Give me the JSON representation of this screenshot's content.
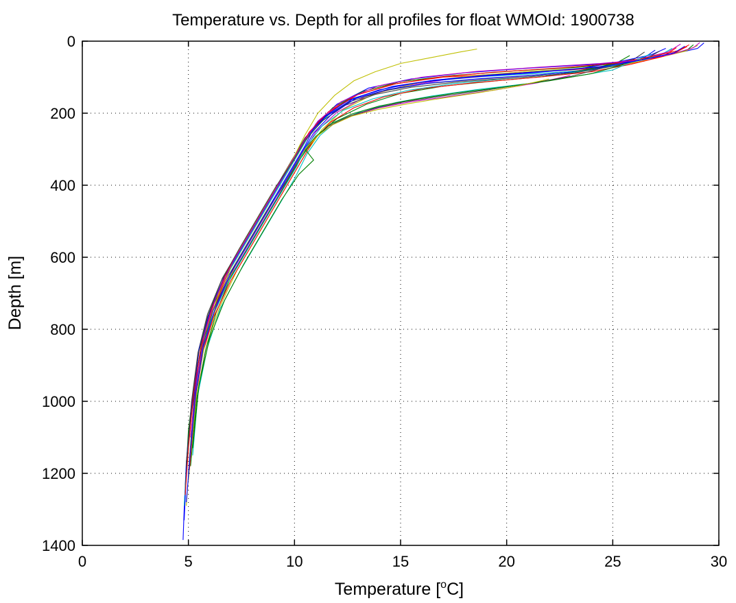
{
  "chart_data": {
    "type": "line",
    "title": "Temperature vs. Depth for all profiles for float WMOId: 1900738",
    "xlabel_prefix": "Temperature [",
    "xlabel_sup": "o",
    "xlabel_suffix": "C]",
    "ylabel": "Depth [m]",
    "xlim": [
      0,
      30
    ],
    "ylim": [
      1400,
      0
    ],
    "y_reversed": true,
    "grid": true,
    "legend": "none",
    "xticks": [
      0,
      5,
      10,
      15,
      20,
      25,
      30
    ],
    "yticks": [
      0,
      200,
      400,
      600,
      800,
      1000,
      1200,
      1400
    ],
    "xtick_labels": [
      "0",
      "5",
      "10",
      "15",
      "20",
      "25",
      "30"
    ],
    "ytick_labels": [
      "0",
      "200",
      "400",
      "600",
      "800",
      "1000",
      "1200",
      "1400"
    ],
    "series_colors": [
      "#0000ff",
      "#008000",
      "#ff0000",
      "#00bfbf",
      "#bf00bf",
      "#bfbf00",
      "#404040"
    ],
    "series": [
      {
        "x": [
          29.3,
          29.0,
          27.5,
          26.0,
          24.0,
          21.0,
          18.0,
          15.5,
          13.5,
          12.0,
          11.0,
          10.5,
          9.8,
          9.0,
          8.1,
          7.2,
          6.4,
          5.8,
          5.4,
          5.1,
          4.9,
          4.8,
          4.75
        ],
        "y": [
          5,
          20,
          40,
          55,
          65,
          75,
          88,
          105,
          130,
          175,
          230,
          290,
          360,
          440,
          530,
          620,
          720,
          820,
          930,
          1050,
          1170,
          1300,
          1385
        ]
      },
      {
        "x": [
          28.8,
          28.5,
          27.0,
          25.5,
          23.5,
          20.5,
          17.5,
          15.0,
          13.2,
          11.8,
          10.9,
          10.3,
          9.6,
          8.8,
          7.9,
          7.0,
          6.2,
          5.7,
          5.3,
          5.0,
          4.85
        ],
        "y": [
          10,
          25,
          45,
          60,
          72,
          82,
          95,
          112,
          140,
          185,
          240,
          300,
          370,
          450,
          540,
          630,
          730,
          830,
          940,
          1080,
          1240
        ]
      },
      {
        "x": [
          28.5,
          28.0,
          26.5,
          25.0,
          23.0,
          20.0,
          17.0,
          14.8,
          13.0,
          11.7,
          10.8,
          10.2,
          9.5,
          8.7,
          7.8,
          6.9,
          6.2,
          5.7,
          5.35,
          5.1
        ],
        "y": [
          15,
          30,
          55,
          70,
          80,
          90,
          100,
          118,
          148,
          195,
          250,
          310,
          380,
          460,
          550,
          640,
          740,
          840,
          960,
          1100
        ]
      },
      {
        "x": [
          27.8,
          27.2,
          25.8,
          24.2,
          22.0,
          19.0,
          16.5,
          14.5,
          12.8,
          11.6,
          10.7,
          10.1,
          9.4,
          8.6,
          7.7,
          6.8,
          6.0,
          5.5,
          5.2,
          4.95,
          4.8
        ],
        "y": [
          20,
          40,
          60,
          78,
          88,
          98,
          110,
          128,
          158,
          205,
          260,
          320,
          390,
          470,
          560,
          650,
          750,
          860,
          990,
          1150,
          1290
        ]
      },
      {
        "x": [
          28.2,
          27.6,
          26.2,
          24.8,
          22.8,
          20.0,
          17.2,
          15.2,
          13.4,
          12.0,
          11.0,
          10.4,
          9.7,
          8.9,
          8.0,
          7.1,
          6.3,
          5.75,
          5.4,
          5.15
        ],
        "y": [
          8,
          30,
          50,
          68,
          80,
          92,
          106,
          124,
          152,
          198,
          252,
          312,
          382,
          462,
          552,
          642,
          742,
          845,
          970,
          1110
        ]
      },
      {
        "x": [
          29.0,
          28.4,
          27.0,
          25.6,
          23.6,
          20.8,
          18.0,
          15.8,
          13.8,
          12.3,
          11.3,
          10.6,
          9.9,
          9.1,
          8.2,
          7.3,
          6.5,
          5.9,
          5.5,
          5.2,
          5.0
        ],
        "y": [
          12,
          28,
          48,
          64,
          75,
          85,
          98,
          116,
          145,
          190,
          245,
          305,
          375,
          455,
          545,
          635,
          735,
          835,
          950,
          1090,
          1220
        ]
      },
      {
        "x": [
          26.5,
          26.0,
          24.5,
          23.0,
          21.0,
          18.5,
          16.2,
          14.2,
          12.6,
          11.4,
          10.5,
          9.9,
          9.2,
          8.4,
          7.5,
          6.6,
          5.9,
          5.45,
          5.15,
          4.9
        ],
        "y": [
          30,
          50,
          70,
          86,
          96,
          106,
          118,
          138,
          168,
          212,
          268,
          328,
          398,
          478,
          568,
          658,
          758,
          865,
          1000,
          1170
        ]
      },
      {
        "x": [
          27.0,
          26.5,
          25.0,
          23.4,
          21.4,
          18.8,
          16.4,
          14.4,
          12.7,
          11.5,
          10.6,
          10.0,
          9.3,
          8.5,
          7.6,
          6.7,
          6.0,
          5.5,
          5.2,
          4.95,
          4.8
        ],
        "y": [
          25,
          45,
          68,
          84,
          94,
          104,
          116,
          134,
          162,
          208,
          262,
          322,
          392,
          472,
          562,
          652,
          752,
          855,
          985,
          1140,
          1330
        ]
      },
      {
        "x": [
          25.8,
          25.2,
          23.6,
          21.8,
          19.5,
          17.0,
          15.0,
          13.4,
          12.0,
          11.0,
          10.3,
          9.6,
          8.8,
          7.9,
          7.0,
          6.3,
          5.8,
          5.4,
          5.1
        ],
        "y": [
          40,
          60,
          82,
          98,
          110,
          125,
          145,
          175,
          215,
          265,
          325,
          395,
          475,
          565,
          655,
          755,
          860,
          990,
          1180
        ]
      },
      {
        "x": [
          28.0,
          27.4,
          25.8,
          24.0,
          21.5,
          18.5,
          16.0,
          14.2,
          12.8,
          11.7,
          10.9,
          10.3,
          9.6,
          8.8,
          7.9,
          7.0,
          6.2,
          5.65,
          5.3,
          5.05
        ],
        "y": [
          18,
          42,
          65,
          85,
          100,
          115,
          132,
          155,
          185,
          225,
          275,
          335,
          405,
          485,
          575,
          665,
          765,
          870,
          1010,
          1190
        ]
      },
      {
        "x": [
          26.0,
          25.0,
          23.0,
          21.0,
          18.5,
          16.5,
          14.8,
          13.3,
          12.0,
          11.2,
          10.6,
          10.0,
          9.2,
          8.3,
          7.4,
          6.5,
          5.9,
          5.45,
          5.2
        ],
        "y": [
          55,
          80,
          100,
          118,
          135,
          152,
          170,
          192,
          222,
          262,
          312,
          382,
          462,
          552,
          642,
          742,
          850,
          980,
          1150
        ]
      },
      {
        "x": [
          23.0,
          21.5,
          19.5,
          17.5,
          15.5,
          14.0,
          12.8,
          11.8,
          11.0,
          10.4,
          9.7,
          8.9,
          8.0,
          7.1,
          6.3,
          5.75,
          5.35,
          5.05
        ],
        "y": [
          95,
          115,
          135,
          152,
          168,
          185,
          205,
          232,
          265,
          305,
          375,
          455,
          545,
          635,
          735,
          840,
          975,
          1160
        ]
      },
      {
        "x": [
          18.6,
          17.8,
          16.5,
          15.0,
          13.8,
          12.8,
          11.9,
          11.1,
          10.5,
          9.9,
          9.1,
          8.2,
          7.3,
          6.5,
          5.9,
          5.5,
          5.2
        ],
        "y": [
          22,
          30,
          45,
          62,
          85,
          110,
          150,
          200,
          260,
          330,
          410,
          500,
          590,
          690,
          790,
          920,
          1080
        ]
      },
      {
        "x": [
          24.5,
          23.0,
          21.0,
          19.0,
          17.0,
          15.2,
          13.8,
          12.6,
          11.6,
          10.9,
          10.3,
          9.6,
          8.7,
          7.8,
          6.9,
          6.15,
          5.6,
          5.25,
          5.0
        ],
        "y": [
          75,
          98,
          118,
          136,
          152,
          168,
          186,
          208,
          236,
          272,
          320,
          390,
          470,
          560,
          650,
          750,
          860,
          1000,
          1200
        ]
      },
      {
        "x": [
          27.5,
          26.8,
          25.2,
          23.5,
          21.2,
          18.2,
          15.8,
          14.0,
          12.5,
          11.4,
          10.6,
          10.0,
          9.3,
          8.5,
          7.6,
          6.7,
          6.0,
          5.5,
          5.2
        ],
        "y": [
          20,
          38,
          58,
          76,
          88,
          100,
          115,
          135,
          165,
          210,
          265,
          325,
          395,
          475,
          565,
          655,
          755,
          860,
          1000
        ]
      },
      {
        "x": [
          25.5,
          24.0,
          22.0,
          19.8,
          17.5,
          15.6,
          14.0,
          12.7,
          11.7,
          11.0,
          10.5,
          10.9,
          10.2,
          9.4,
          8.5,
          7.6,
          6.7,
          6.0,
          5.5,
          5.2
        ],
        "y": [
          65,
          90,
          110,
          128,
          145,
          162,
          180,
          202,
          230,
          265,
          300,
          330,
          370,
          440,
          530,
          620,
          720,
          825,
          955,
          1130
        ]
      },
      {
        "x": [
          28.6,
          28.1,
          26.6,
          25.0,
          22.6,
          19.4,
          16.8,
          14.6,
          12.9,
          11.6,
          10.7,
          10.1,
          9.4,
          8.6,
          7.7,
          6.8,
          6.1,
          5.6,
          5.25,
          5.0,
          4.85
        ],
        "y": [
          10,
          26,
          46,
          62,
          74,
          86,
          100,
          120,
          150,
          196,
          252,
          312,
          382,
          462,
          552,
          642,
          742,
          846,
          975,
          1130,
          1260
        ]
      },
      {
        "x": [
          26.8,
          26.0,
          24.4,
          22.5,
          20.0,
          17.5,
          15.4,
          13.7,
          12.3,
          11.3,
          10.6,
          10.1,
          9.4,
          8.6,
          7.7,
          6.8,
          6.05,
          5.55,
          5.25,
          5.0
        ],
        "y": [
          35,
          55,
          76,
          92,
          104,
          118,
          136,
          160,
          192,
          236,
          288,
          348,
          418,
          498,
          588,
          678,
          778,
          882,
          1015,
          1210
        ]
      },
      {
        "x": [
          29.1,
          28.8,
          27.8,
          26.4,
          24.4,
          21.6,
          18.6,
          16.0,
          13.9,
          12.2,
          11.1,
          10.4,
          9.7,
          8.9,
          8.0,
          7.1,
          6.3,
          5.75,
          5.4,
          5.1
        ],
        "y": [
          4,
          18,
          36,
          52,
          62,
          72,
          84,
          100,
          125,
          168,
          222,
          282,
          352,
          432,
          522,
          612,
          712,
          815,
          940,
          1100
        ]
      },
      {
        "x": [
          22.0,
          20.5,
          18.8,
          17.0,
          15.3,
          13.9,
          12.7,
          11.8,
          11.1,
          10.5,
          9.8,
          9.0,
          8.1,
          7.2,
          6.4,
          5.8,
          5.4,
          5.1,
          4.9
        ],
        "y": [
          105,
          125,
          142,
          158,
          174,
          190,
          208,
          232,
          262,
          300,
          365,
          445,
          535,
          625,
          725,
          830,
          960,
          1130,
          1290
        ]
      },
      {
        "x": [
          27.2,
          26.6,
          25.0,
          23.2,
          20.8,
          17.9,
          15.5,
          13.8,
          12.4,
          11.3,
          10.5,
          9.9,
          9.1,
          8.3,
          7.4,
          6.55,
          5.9,
          5.45,
          5.15,
          4.9
        ],
        "y": [
          28,
          48,
          70,
          88,
          100,
          112,
          128,
          148,
          178,
          222,
          276,
          336,
          406,
          486,
          576,
          666,
          766,
          872,
          1005,
          1180
        ]
      },
      {
        "x": [
          28.4,
          27.9,
          26.4,
          24.6,
          22.2,
          19.2,
          16.6,
          14.6,
          13.0,
          11.8,
          10.9,
          10.3,
          9.6,
          8.8,
          7.9,
          7.0,
          6.25,
          5.7,
          5.35,
          5.1,
          4.9
        ],
        "y": [
          14,
          32,
          52,
          70,
          82,
          94,
          108,
          126,
          155,
          200,
          255,
          315,
          385,
          465,
          555,
          645,
          745,
          850,
          978,
          1135,
          1280
        ]
      }
    ]
  }
}
